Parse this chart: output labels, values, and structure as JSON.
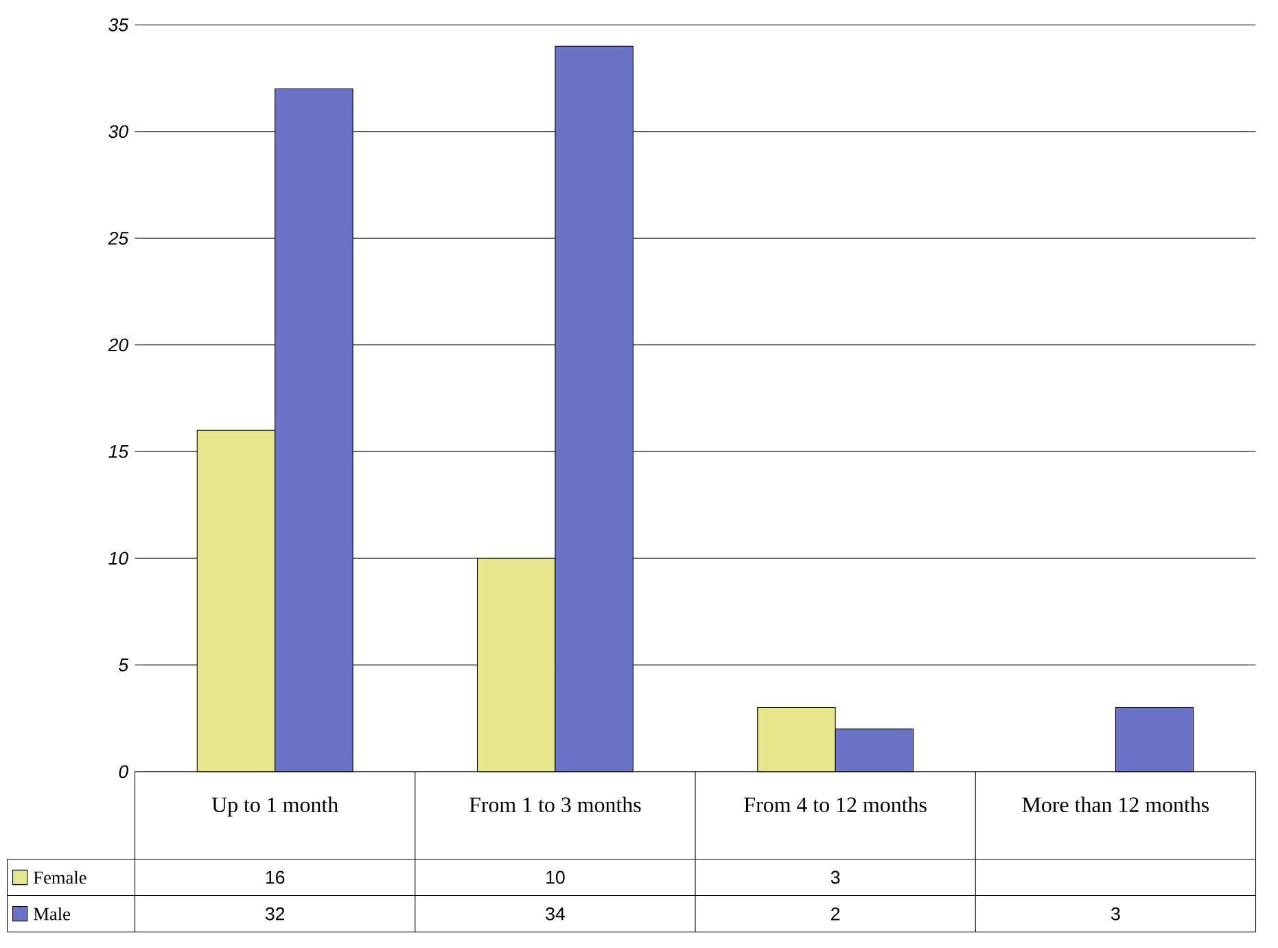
{
  "chart_data": {
    "type": "bar",
    "categories": [
      "Up to 1 month",
      "From 1 to 3 months",
      "From 4 to 12 months",
      "More than 12 months"
    ],
    "series": [
      {
        "name": "Female",
        "color": "#e6e68c",
        "values": [
          16,
          10,
          3,
          null
        ]
      },
      {
        "name": "Male",
        "color": "#6b73c6",
        "values": [
          32,
          34,
          2,
          3
        ]
      }
    ],
    "ylim": [
      0,
      35
    ],
    "yticks": [
      0,
      5,
      10,
      15,
      20,
      25,
      30,
      35
    ],
    "grid": "y",
    "legend": "bottom",
    "data_labels": true
  }
}
